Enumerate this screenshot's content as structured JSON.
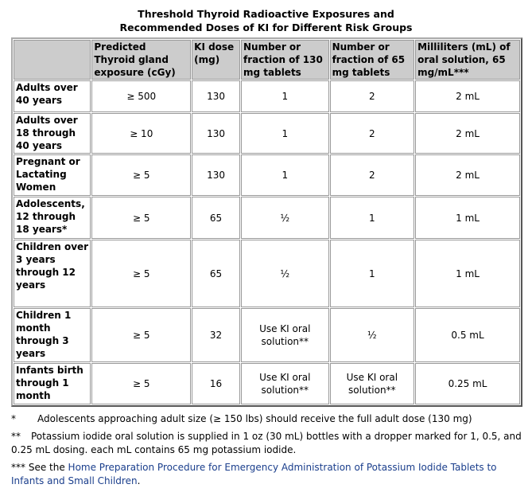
{
  "header": {
    "title": [
      "Threshold Thyroid Radioactive Exposures and",
      "Recommended Doses of KI for Different Risk Groups"
    ]
  },
  "table": {
    "columns": [
      "",
      "Predicted Thyroid gland exposure (cGy)",
      "KI dose (mg)",
      "Number or fraction of 130 mg tablets",
      "Number or fraction of 65 mg tablets",
      "Milliliters (mL) of oral solution, 65 mg/mL***"
    ],
    "rows": [
      [
        "Adults over 40 years",
        "≥ 500",
        "130",
        "1",
        "2",
        "2 mL"
      ],
      [
        "Adults over 18 through 40 years",
        "≥ 10",
        "130",
        "1",
        "2",
        "2 mL"
      ],
      [
        "Pregnant or Lactating Women",
        "≥ 5",
        "130",
        "1",
        "2",
        "2 mL"
      ],
      [
        "Adolescents, 12 through 18 years*",
        "≥ 5",
        "65",
        "½",
        "1",
        "1 mL"
      ],
      [
        "Children over 3 years through 12 years",
        "≥ 5",
        "65",
        "½",
        "1",
        "1 mL"
      ],
      [
        "Children 1 month through 3 years",
        "≥ 5",
        "32",
        "Use KI oral solution**",
        "½",
        "0.5 mL"
      ],
      [
        "Infants birth through 1 month",
        "≥ 5",
        "16",
        "Use KI oral solution**",
        "Use KI oral solution**",
        "0.25 mL"
      ]
    ]
  },
  "footnotes": [
    {
      "marker": "*",
      "text": "Adolescents approaching adult size (≥ 150 lbs) should receive the full adult dose (130 mg)"
    },
    {
      "marker": "**",
      "text": "Potassium iodide oral solution is supplied in 1 oz (30 mL) bottles with a dropper marked for 1, 0.5, and 0.25 mL dosing.  each mL contains 65 mg potassium iodide."
    },
    {
      "marker": "***",
      "text": "See the",
      "link": "Home Preparation Procedure for Emergency Administration of Potassium Iodide Tablets to Infants and Small Children",
      "end": "."
    }
  ]
}
